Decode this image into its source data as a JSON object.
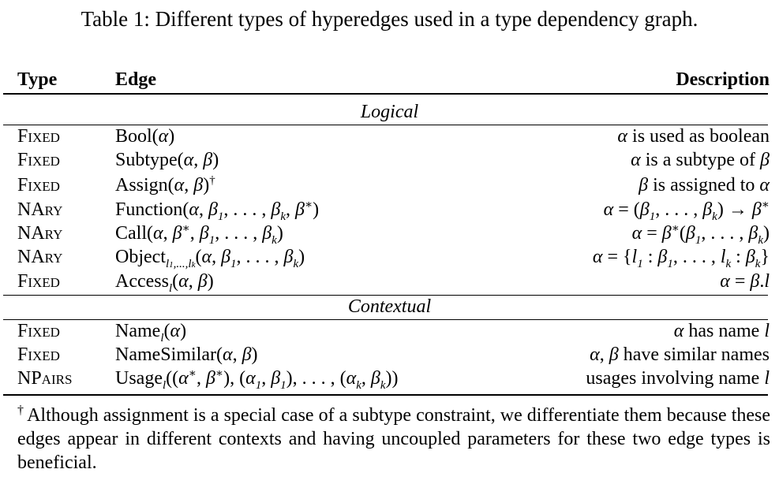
{
  "caption": "Table 1: Different types of hyperedges used in a type dependency graph.",
  "headers": {
    "type": "Type",
    "edge": "Edge",
    "description": "Description"
  },
  "sections": {
    "logical": "Logical",
    "contextual": "Contextual"
  },
  "rows": [
    {
      "type": "Fixed",
      "edge": "Bool(α)",
      "description": "α is used as boolean"
    },
    {
      "type": "Fixed",
      "edge": "Subtype(α, β)",
      "description": "α is a subtype of β"
    },
    {
      "type": "Fixed",
      "edge": "Assign(α, β)",
      "edge_mark": "†",
      "description": "β is assigned to α"
    },
    {
      "type": "NAry",
      "edge": "Function(α, β1, . . . , βk, β∗)",
      "description": "α = (β1, . . . , βk) → β∗"
    },
    {
      "type": "NAry",
      "edge": "Call(α, β∗, β1, . . . , βk)",
      "description": "α = β∗(β1, . . . , βk)"
    },
    {
      "type": "NAry",
      "edge": "Object_{l1,...,lk}(α, β1, . . . , βk)",
      "description": "α = {l1 : β1, . . . , lk : βk}"
    },
    {
      "type": "Fixed",
      "edge": "Access_l(α, β)",
      "description": "α = β.l"
    },
    {
      "type": "Fixed",
      "edge": "Name_l(α)",
      "description": "α has name l"
    },
    {
      "type": "Fixed",
      "edge": "NameSimilar(α, β)",
      "description": "α, β have similar names"
    },
    {
      "type": "NPairs",
      "edge": "Usage_l((α∗, β∗), (α1, β1), . . . , (αk, βk))",
      "description": "usages involving name l"
    }
  ],
  "footnote": {
    "mark": "†",
    "text": "Although assignment is a special case of a subtype constraint, we differentiate them because these edges appear in different contexts and having uncoupled parameters for these two edge types is beneficial."
  }
}
